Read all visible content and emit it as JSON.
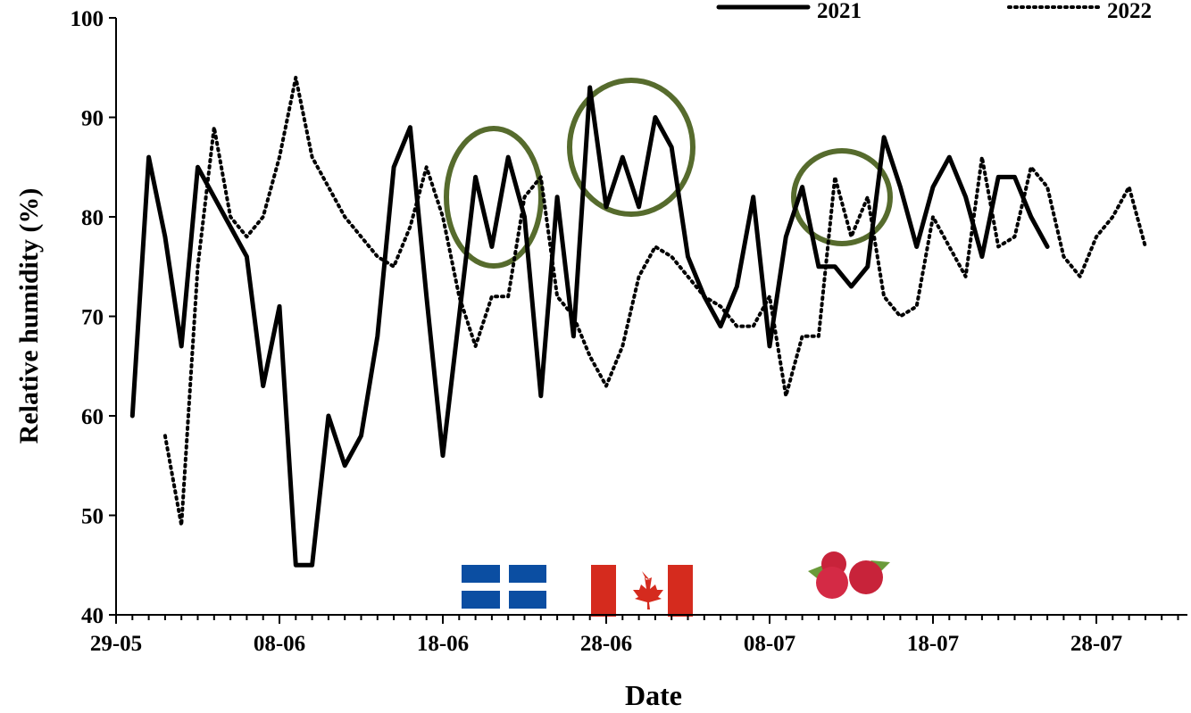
{
  "chart_data": {
    "type": "line",
    "y_label": "Relative humidity (%)",
    "x_label": "Date",
    "categories": [
      "29-05",
      null,
      null,
      null,
      null,
      null,
      null,
      null,
      null,
      null,
      "08-06",
      null,
      null,
      null,
      null,
      null,
      null,
      null,
      null,
      null,
      "18-06",
      null,
      null,
      null,
      null,
      null,
      null,
      null,
      null,
      null,
      "28-06",
      null,
      null,
      null,
      null,
      null,
      null,
      null,
      null,
      null,
      "08-07",
      null,
      null,
      null,
      null,
      null,
      null,
      null,
      null,
      null,
      "18-07",
      null,
      null,
      null,
      null,
      null,
      null,
      null,
      null,
      null,
      "28-07",
      null,
      null,
      null,
      null,
      null
    ],
    "series": [
      {
        "name": "2021",
        "color": "#000000",
        "line_style": "solid",
        "values": [
          null,
          60,
          86,
          78,
          67,
          85,
          82,
          79,
          76,
          63,
          71,
          45,
          45,
          60,
          55,
          58,
          68,
          85,
          89,
          72,
          56,
          70,
          84,
          77,
          86,
          80,
          62,
          82,
          68,
          93,
          81,
          86,
          81,
          90,
          87,
          76,
          72,
          69,
          73,
          82,
          67,
          78,
          83,
          75,
          75,
          73,
          75,
          88,
          83,
          77,
          83,
          86,
          82,
          76,
          84,
          84,
          80,
          77,
          null,
          null,
          null,
          null,
          null,
          null,
          null,
          null
        ]
      },
      {
        "name": "2022",
        "color": "#000000",
        "line_style": "dotted",
        "values": [
          null,
          null,
          null,
          58,
          49,
          75,
          89,
          80,
          78,
          80,
          86,
          94,
          86,
          83,
          80,
          78,
          76,
          75,
          79,
          85,
          80,
          72,
          67,
          72,
          72,
          82,
          84,
          72,
          70,
          66,
          63,
          67,
          74,
          77,
          76,
          74,
          72,
          71,
          69,
          69,
          72,
          62,
          68,
          68,
          84,
          78,
          82,
          72,
          70,
          71,
          80,
          77,
          74,
          86,
          77,
          78,
          85,
          83,
          76,
          74,
          78,
          80,
          83,
          77,
          null,
          null
        ]
      }
    ],
    "ylim": [
      40,
      100
    ],
    "yticks": [
      40,
      50,
      60,
      70,
      80,
      90,
      100
    ]
  }
}
